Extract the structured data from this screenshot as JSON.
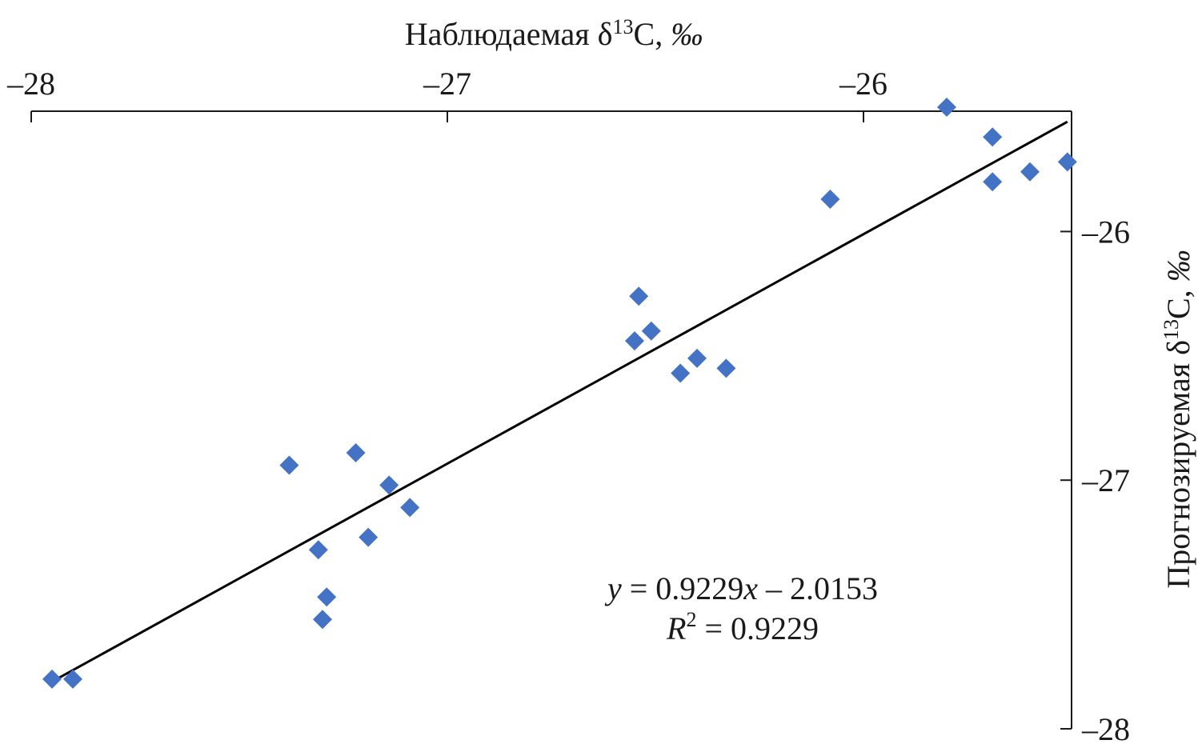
{
  "chart_data": {
    "type": "scatter",
    "title": "",
    "xlabel": {
      "main": "Наблюдаемая δ",
      "sup": "13",
      "rest": "C, ",
      "unit": "‰"
    },
    "ylabel": {
      "main": "Прогнозируемая δ",
      "sup": "13",
      "rest": "C, ",
      "unit": "‰"
    },
    "x_axis_position": "top",
    "y_axis_position": "right",
    "y_direction": "downward",
    "xlim": [
      -28.0,
      -25.5
    ],
    "ylim": [
      -28.0,
      -25.5
    ],
    "x_ticks": [
      -28,
      -27,
      -26
    ],
    "x_tick_labels": [
      "–28",
      "–27",
      "–26"
    ],
    "y_ticks": [
      -26,
      -27,
      -28
    ],
    "y_tick_labels": [
      "–26",
      "–27",
      "–28"
    ],
    "grid": false,
    "legend": "none",
    "colors": {
      "points": "#4472C4",
      "trendline": "#000000",
      "axes": "#1a1a1a"
    },
    "points": [
      {
        "x": -27.95,
        "y": -27.8
      },
      {
        "x": -27.9,
        "y": -27.8
      },
      {
        "x": -27.38,
        "y": -26.94
      },
      {
        "x": -27.31,
        "y": -27.28
      },
      {
        "x": -27.3,
        "y": -27.56
      },
      {
        "x": -27.29,
        "y": -27.47
      },
      {
        "x": -27.22,
        "y": -26.89
      },
      {
        "x": -27.19,
        "y": -27.23
      },
      {
        "x": -27.14,
        "y": -27.02
      },
      {
        "x": -27.09,
        "y": -27.11
      },
      {
        "x": -26.55,
        "y": -26.44
      },
      {
        "x": -26.54,
        "y": -26.26
      },
      {
        "x": -26.51,
        "y": -26.4
      },
      {
        "x": -26.44,
        "y": -26.57
      },
      {
        "x": -26.4,
        "y": -26.51
      },
      {
        "x": -26.33,
        "y": -26.55
      },
      {
        "x": -26.08,
        "y": -25.87
      },
      {
        "x": -25.8,
        "y": -25.5
      },
      {
        "x": -25.69,
        "y": -25.62
      },
      {
        "x": -25.69,
        "y": -25.8
      },
      {
        "x": -25.6,
        "y": -25.76
      },
      {
        "x": -25.51,
        "y": -25.72
      }
    ],
    "trendline": {
      "slope": 0.9229,
      "intercept": -2.0153,
      "x_range": [
        -27.95,
        -25.51
      ]
    },
    "annotations": {
      "equation": {
        "y": "y",
        "eq": " = 0.9229",
        "x": "x",
        "rest": " – 2.0153"
      },
      "r2": {
        "r": "R",
        "sup": "2",
        "rest": " = 0.9229"
      }
    }
  }
}
